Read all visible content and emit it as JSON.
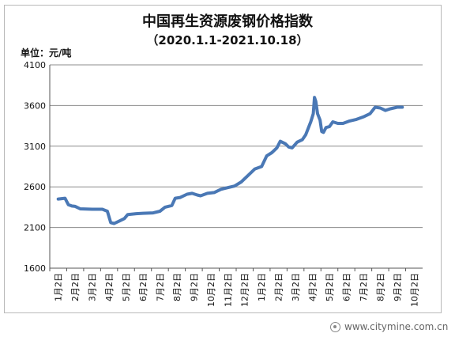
{
  "chart_data": {
    "type": "line",
    "title": "中国再生资源废钢价格指数",
    "subtitle": "（2020.1.1-2021.10.18）",
    "ylabel": "单位：元/吨",
    "xlabel": "",
    "ylim": [
      1600,
      4100
    ],
    "yticks": [
      1600,
      2100,
      2600,
      3100,
      3600,
      4100
    ],
    "grid": true,
    "legend": "none",
    "line_color": "#4a78b5",
    "categories": [
      "1月2日",
      "2月2日",
      "3月2日",
      "4月2日",
      "5月2日",
      "6月2日",
      "7月2日",
      "8月2日",
      "9月2日",
      "10月2日",
      "11月2日",
      "12月2日",
      "1月2日",
      "2月2日",
      "3月2日",
      "4月2日",
      "5月2日",
      "6月2日",
      "7月2日",
      "8月2日",
      "9月2日",
      "10月2日"
    ],
    "series": [
      {
        "values": [
          [
            0,
            2450
          ],
          [
            0.4,
            2460
          ],
          [
            0.6,
            2380
          ],
          [
            0.8,
            2365
          ],
          [
            1.0,
            2360
          ],
          [
            1.3,
            2330
          ],
          [
            2.0,
            2325
          ],
          [
            2.6,
            2325
          ],
          [
            2.9,
            2300
          ],
          [
            3.1,
            2160
          ],
          [
            3.3,
            2150
          ],
          [
            3.6,
            2180
          ],
          [
            3.9,
            2210
          ],
          [
            4.1,
            2260
          ],
          [
            4.6,
            2270
          ],
          [
            5.0,
            2275
          ],
          [
            5.6,
            2280
          ],
          [
            6.0,
            2300
          ],
          [
            6.3,
            2350
          ],
          [
            6.7,
            2370
          ],
          [
            6.9,
            2460
          ],
          [
            7.2,
            2470
          ],
          [
            7.6,
            2510
          ],
          [
            7.9,
            2520
          ],
          [
            8.2,
            2500
          ],
          [
            8.4,
            2490
          ],
          [
            8.8,
            2520
          ],
          [
            9.2,
            2530
          ],
          [
            9.6,
            2570
          ],
          [
            10.0,
            2590
          ],
          [
            10.4,
            2610
          ],
          [
            10.8,
            2660
          ],
          [
            11.2,
            2740
          ],
          [
            11.6,
            2820
          ],
          [
            12.0,
            2850
          ],
          [
            12.3,
            2980
          ],
          [
            12.6,
            3020
          ],
          [
            12.9,
            3080
          ],
          [
            13.1,
            3160
          ],
          [
            13.4,
            3130
          ],
          [
            13.6,
            3090
          ],
          [
            13.8,
            3080
          ],
          [
            14.1,
            3150
          ],
          [
            14.4,
            3180
          ],
          [
            14.6,
            3240
          ],
          [
            14.9,
            3400
          ],
          [
            15.05,
            3500
          ],
          [
            15.12,
            3700
          ],
          [
            15.2,
            3650
          ],
          [
            15.3,
            3500
          ],
          [
            15.45,
            3420
          ],
          [
            15.55,
            3280
          ],
          [
            15.65,
            3270
          ],
          [
            15.8,
            3330
          ],
          [
            16.0,
            3340
          ],
          [
            16.2,
            3400
          ],
          [
            16.5,
            3380
          ],
          [
            16.8,
            3380
          ],
          [
            17.2,
            3410
          ],
          [
            17.6,
            3430
          ],
          [
            18.0,
            3460
          ],
          [
            18.4,
            3500
          ],
          [
            18.7,
            3580
          ],
          [
            19.0,
            3570
          ],
          [
            19.3,
            3540
          ],
          [
            19.6,
            3560
          ],
          [
            20.0,
            3580
          ],
          [
            20.3,
            3580
          ]
        ]
      }
    ]
  },
  "watermark": {
    "text": "www.citymine.com.cn"
  }
}
